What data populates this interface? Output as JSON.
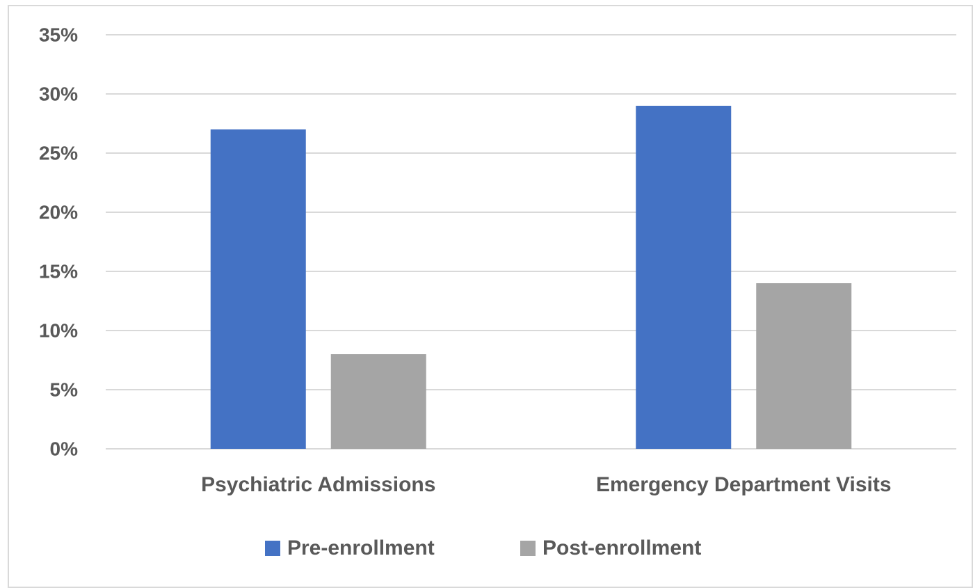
{
  "chart_data": {
    "type": "bar",
    "categories": [
      "Psychiatric Admissions",
      "Emergency Department Visits"
    ],
    "series": [
      {
        "name": "Pre-enrollment",
        "color": "#4472c4",
        "values": [
          27,
          29
        ]
      },
      {
        "name": "Post-enrollment",
        "color": "#a5a5a5",
        "values": [
          8,
          14
        ]
      }
    ],
    "ylim": [
      0,
      35
    ],
    "yticks": [
      {
        "value": 0,
        "label": "0%"
      },
      {
        "value": 5,
        "label": "5%"
      },
      {
        "value": 10,
        "label": "10%"
      },
      {
        "value": 15,
        "label": "15%"
      },
      {
        "value": 20,
        "label": "20%"
      },
      {
        "value": 25,
        "label": "25%"
      },
      {
        "value": 30,
        "label": "30%"
      },
      {
        "value": 35,
        "label": "35%"
      }
    ],
    "grid": true,
    "legend": "bottom"
  }
}
